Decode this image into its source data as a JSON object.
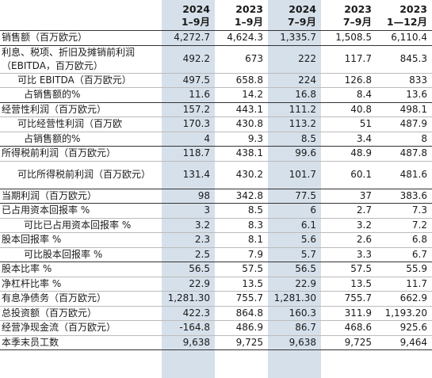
{
  "header": {
    "cols": [
      {
        "year": "2024",
        "period": "1–9月"
      },
      {
        "year": "2023",
        "period": "1–9月"
      },
      {
        "year": "2024",
        "period": "7–9月"
      },
      {
        "year": "2023",
        "period": "7–9月"
      },
      {
        "year": "2023",
        "period": "1—12月"
      }
    ]
  },
  "rows": [
    {
      "label": "销售额（百万欧元）",
      "values": [
        "4,272.7",
        "4,624.3",
        "1,335.7",
        "1,508.5",
        "6,110.4"
      ]
    },
    {
      "label": "利息、税项、折旧及摊销前利润（EBITDA，百万欧元）",
      "values": [
        "492.2",
        "673",
        "222",
        "117.7",
        "845.3"
      ]
    },
    {
      "label": "可比 EBITDA（百万欧元）",
      "values": [
        "497.5",
        "658.8",
        "224",
        "126.8",
        "833"
      ]
    },
    {
      "label": "占销售额的%",
      "values": [
        "11.6",
        "14.2",
        "16.8",
        "8.4",
        "13.6"
      ]
    },
    {
      "label": "经营性利润（百万欧元）",
      "values": [
        "157.2",
        "443.1",
        "111.2",
        "40.8",
        "498.1"
      ]
    },
    {
      "label": "可比经营性利润（百万欧",
      "values": [
        "170.3",
        "430.8",
        "113.2",
        "51",
        "487.9"
      ]
    },
    {
      "label": "占销售额的%",
      "values": [
        "4",
        "9.3",
        "8.5",
        "3.4",
        "8"
      ]
    },
    {
      "label": "所得税前利润（百万欧元）",
      "values": [
        "118.7",
        "438.1",
        "99.6",
        "48.9",
        "487.8"
      ]
    },
    {
      "label": "可比所得税前利润（百万欧元）",
      "values": [
        "131.4",
        "430.2",
        "101.7",
        "60.1",
        "481.6"
      ]
    },
    {
      "label": "当期利润（百万欧元）",
      "values": [
        "98",
        "342.8",
        "77.5",
        "37",
        "383.6"
      ]
    },
    {
      "label": "已占用资本回报率 %",
      "values": [
        "3",
        "8.5",
        "6",
        "2.7",
        "7.3"
      ]
    },
    {
      "label": "可比已占用资本回报率 %",
      "values": [
        "3.2",
        "8.3",
        "6.1",
        "3.2",
        "7.2"
      ]
    },
    {
      "label": "股本回报率 %",
      "values": [
        "2.3",
        "8.1",
        "5.6",
        "2.6",
        "6.8"
      ]
    },
    {
      "label": "可比股本回报率 %",
      "values": [
        "2.5",
        "7.9",
        "5.7",
        "3.3",
        "6.7"
      ]
    },
    {
      "label": "股本比率 %",
      "values": [
        "56.5",
        "57.5",
        "56.5",
        "57.5",
        "55.9"
      ]
    },
    {
      "label": "净杠杆比率 %",
      "values": [
        "22.9",
        "13.5",
        "22.9",
        "13.5",
        "11.7"
      ]
    },
    {
      "label": "有息净债务（百万欧元）",
      "values": [
        "1,281.30",
        "755.7",
        "1,281.30",
        "755.7",
        "662.9"
      ]
    },
    {
      "label": "总投资额（百万欧元）",
      "values": [
        "422.3",
        "864.8",
        "160.3",
        "311.9",
        "1,193.20"
      ]
    },
    {
      "label": "经营净现金流（百万欧元）",
      "values": [
        "-164.8",
        "486.9",
        "86.7",
        "468.6",
        "925.6"
      ]
    },
    {
      "label": "本季末员工数",
      "values": [
        "9,638",
        "9,725",
        "9,638",
        "9,725",
        "9,464"
      ]
    }
  ],
  "colors": {
    "highlight": "#d6e0ea",
    "rule": "#333333"
  }
}
